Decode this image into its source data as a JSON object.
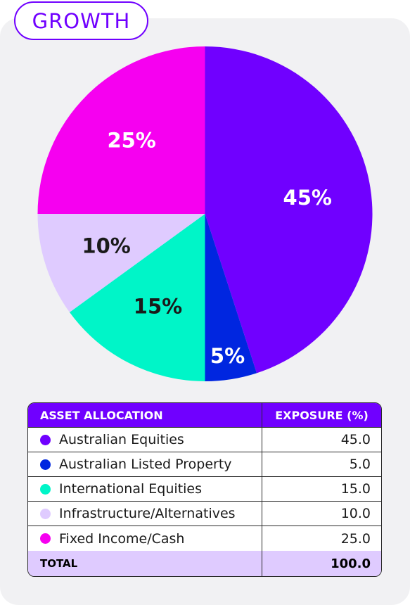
{
  "badge": "GROWTH",
  "chart_data": {
    "type": "pie",
    "title": "",
    "slices": [
      {
        "label": "Australian Equities",
        "value": 45,
        "display": "45%",
        "color": "#7000ff",
        "text_color": "#ffffff"
      },
      {
        "label": "Australian Listed Property",
        "value": 5,
        "display": "5%",
        "color": "#0026e0",
        "text_color": "#ffffff"
      },
      {
        "label": "International Equities",
        "value": 15,
        "display": "15%",
        "color": "#00f5c8",
        "text_color": "#1a1a1a"
      },
      {
        "label": "Infrastructure/Alternatives",
        "value": 10,
        "display": "10%",
        "color": "#dfcbff",
        "text_color": "#1a1a1a"
      },
      {
        "label": "Fixed Income/Cash",
        "value": 25,
        "display": "25%",
        "color": "#f600f0",
        "text_color": "#ffffff"
      }
    ]
  },
  "table": {
    "col_allocation": "ASSET ALLOCATION",
    "col_exposure": "EXPOSURE (%)",
    "rows": [
      {
        "label": "Australian Equities",
        "value": "45.0",
        "color": "#7000ff"
      },
      {
        "label": "Australian Listed Property",
        "value": "5.0",
        "color": "#0026e0"
      },
      {
        "label": "International Equities",
        "value": "15.0",
        "color": "#00f5c8"
      },
      {
        "label": "Infrastructure/Alternatives",
        "value": "10.0",
        "color": "#dfcbff"
      },
      {
        "label": "Fixed Income/Cash",
        "value": "25.0",
        "color": "#f600f0"
      }
    ],
    "total_label": "TOTAL",
    "total_value": "100.0"
  }
}
